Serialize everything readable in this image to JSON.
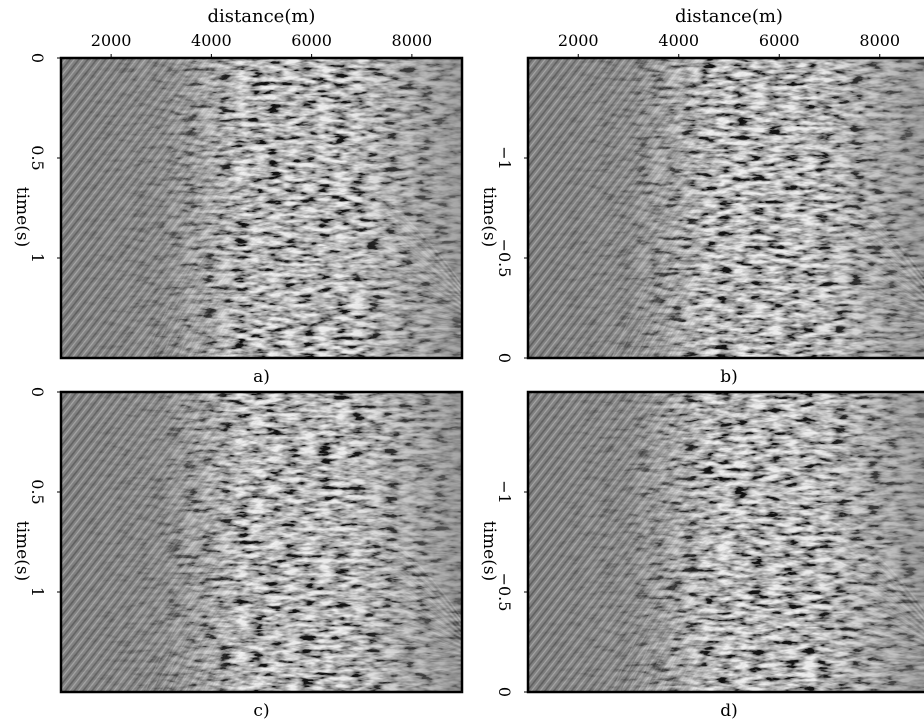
{
  "chart_data": [
    {
      "type": "heatmap",
      "panel_label": "a)",
      "xlabel": "distance(m)",
      "ylabel": "time(s)",
      "xticks": [
        "2000",
        "4000",
        "6000",
        "8000"
      ],
      "yticks": [
        "0",
        "0.5",
        "1"
      ],
      "xlim": [
        1000,
        9000
      ],
      "ylim": [
        0,
        1.5
      ],
      "y_direction": "down",
      "colormap": "gray",
      "x_axis_position": "top"
    },
    {
      "type": "heatmap",
      "panel_label": "b)",
      "xlabel": "distance(m)",
      "ylabel": "time(s)",
      "xticks": [
        "2000",
        "4000",
        "6000",
        "8000"
      ],
      "yticks": [
        "−1",
        "−0.5",
        "0"
      ],
      "xlim": [
        1000,
        9000
      ],
      "ylim": [
        -1.5,
        0
      ],
      "y_direction": "down",
      "colormap": "gray",
      "x_axis_position": "top"
    },
    {
      "type": "heatmap",
      "panel_label": "c)",
      "xlabel": "",
      "ylabel": "time(s)",
      "xticks": [],
      "yticks": [
        "0",
        "0.5",
        "1"
      ],
      "xlim": [
        1000,
        9000
      ],
      "ylim": [
        0,
        1.5
      ],
      "y_direction": "down",
      "colormap": "gray"
    },
    {
      "type": "heatmap",
      "panel_label": "d)",
      "xlabel": "",
      "ylabel": "time(s)",
      "xticks": [],
      "yticks": [
        "−1",
        "−0.5",
        "0"
      ],
      "xlim": [
        1000,
        9000
      ],
      "ylim": [
        -1.5,
        0
      ],
      "y_direction": "down",
      "colormap": "gray"
    }
  ],
  "colors": {
    "background_gray": "#808080",
    "frame": "#000000"
  }
}
